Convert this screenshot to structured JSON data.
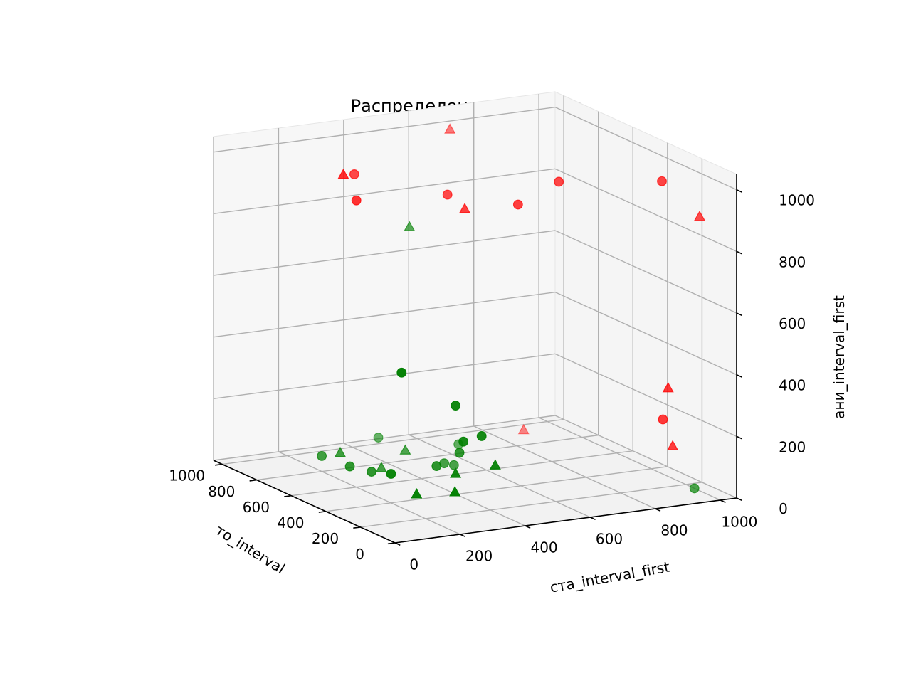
{
  "chart_data": {
    "type": "scatter3d",
    "title": "Распределение примеров",
    "xlabel": "то_interval",
    "ylabel": "ста_interval_first",
    "zlabel": "ани_interval_first",
    "xlim": [
      0,
      1050
    ],
    "ylim": [
      0,
      1050
    ],
    "zlim": [
      0,
      1050
    ],
    "xticks": [
      "0",
      "200",
      "400",
      "600",
      "800",
      "1000"
    ],
    "yticks": [
      "0",
      "200",
      "400",
      "600",
      "800",
      "1000"
    ],
    "zticks": [
      "0",
      "200",
      "400",
      "600",
      "800",
      "1000"
    ],
    "grid": true,
    "colors": {
      "red": "#ff0000",
      "green": "#008000"
    },
    "points": [
      {
        "x": 150,
        "y": 900,
        "z": 1010,
        "color": "red",
        "marker": "circle"
      },
      {
        "x": 120,
        "y": 1000,
        "z": 890,
        "color": "red",
        "marker": "triangle"
      },
      {
        "x": 600,
        "y": 160,
        "z": 1020,
        "color": "red",
        "marker": "triangle"
      },
      {
        "x": 370,
        "y": 700,
        "z": 980,
        "color": "red",
        "marker": "circle"
      },
      {
        "x": 600,
        "y": 480,
        "z": 910,
        "color": "red",
        "marker": "circle"
      },
      {
        "x": 500,
        "y": 480,
        "z": 890,
        "color": "red",
        "marker": "triangle"
      },
      {
        "x": 800,
        "y": 300,
        "z": 950,
        "color": "red",
        "marker": "circle"
      },
      {
        "x": 600,
        "y": 200,
        "z": 930,
        "color": "red",
        "marker": "circle"
      },
      {
        "x": 380,
        "y": 580,
        "z": 920,
        "color": "red",
        "marker": "circle"
      },
      {
        "x": 820,
        "y": 480,
        "z": 750,
        "color": "green",
        "marker": "triangle"
      },
      {
        "x": 1000,
        "y": 700,
        "z": 990,
        "color": "red",
        "marker": "triangle"
      },
      {
        "x": 20,
        "y": 850,
        "z": 380,
        "color": "red",
        "marker": "triangle"
      },
      {
        "x": 50,
        "y": 850,
        "z": 270,
        "color": "red",
        "marker": "circle"
      },
      {
        "x": 50,
        "y": 880,
        "z": 180,
        "color": "red",
        "marker": "triangle"
      },
      {
        "x": 950,
        "y": 900,
        "z": 0,
        "color": "red",
        "marker": "triangle"
      },
      {
        "x": 150,
        "y": 100,
        "z": 500,
        "color": "green",
        "marker": "circle"
      },
      {
        "x": 120,
        "y": 250,
        "z": 380,
        "color": "green",
        "marker": "circle"
      },
      {
        "x": 120,
        "y": 330,
        "z": 270,
        "color": "green",
        "marker": "circle"
      },
      {
        "x": 150,
        "y": 290,
        "z": 250,
        "color": "green",
        "marker": "circle"
      },
      {
        "x": 230,
        "y": 110,
        "z": 150,
        "color": "green",
        "marker": "circle"
      },
      {
        "x": 120,
        "y": 250,
        "z": 160,
        "color": "green",
        "marker": "triangle"
      },
      {
        "x": 120,
        "y": 130,
        "z": 110,
        "color": "green",
        "marker": "triangle"
      },
      {
        "x": 30,
        "y": 200,
        "z": 130,
        "color": "green",
        "marker": "triangle"
      },
      {
        "x": 60,
        "y": 340,
        "z": 190,
        "color": "green",
        "marker": "triangle"
      },
      {
        "x": 380,
        "y": 400,
        "z": 140,
        "color": "green",
        "marker": "circle"
      },
      {
        "x": 400,
        "y": 340,
        "z": 100,
        "color": "green",
        "marker": "circle"
      },
      {
        "x": 600,
        "y": 180,
        "z": 70,
        "color": "green",
        "marker": "circle"
      },
      {
        "x": 550,
        "y": 220,
        "z": 60,
        "color": "green",
        "marker": "circle"
      },
      {
        "x": 800,
        "y": 200,
        "z": 50,
        "color": "green",
        "marker": "circle"
      },
      {
        "x": 750,
        "y": 230,
        "z": 70,
        "color": "green",
        "marker": "triangle"
      },
      {
        "x": 600,
        "y": 470,
        "z": 40,
        "color": "green",
        "marker": "circle"
      },
      {
        "x": 600,
        "y": 500,
        "z": 30,
        "color": "green",
        "marker": "circle"
      },
      {
        "x": 700,
        "y": 330,
        "z": 20,
        "color": "green",
        "marker": "triangle"
      },
      {
        "x": 800,
        "y": 620,
        "z": 30,
        "color": "green",
        "marker": "circle"
      },
      {
        "x": 750,
        "y": 430,
        "z": 50,
        "color": "green",
        "marker": "triangle"
      },
      {
        "x": 1000,
        "y": 480,
        "z": 20,
        "color": "green",
        "marker": "circle"
      },
      {
        "x": 150,
        "y": 1000,
        "z": 0,
        "color": "green",
        "marker": "circle"
      }
    ]
  }
}
